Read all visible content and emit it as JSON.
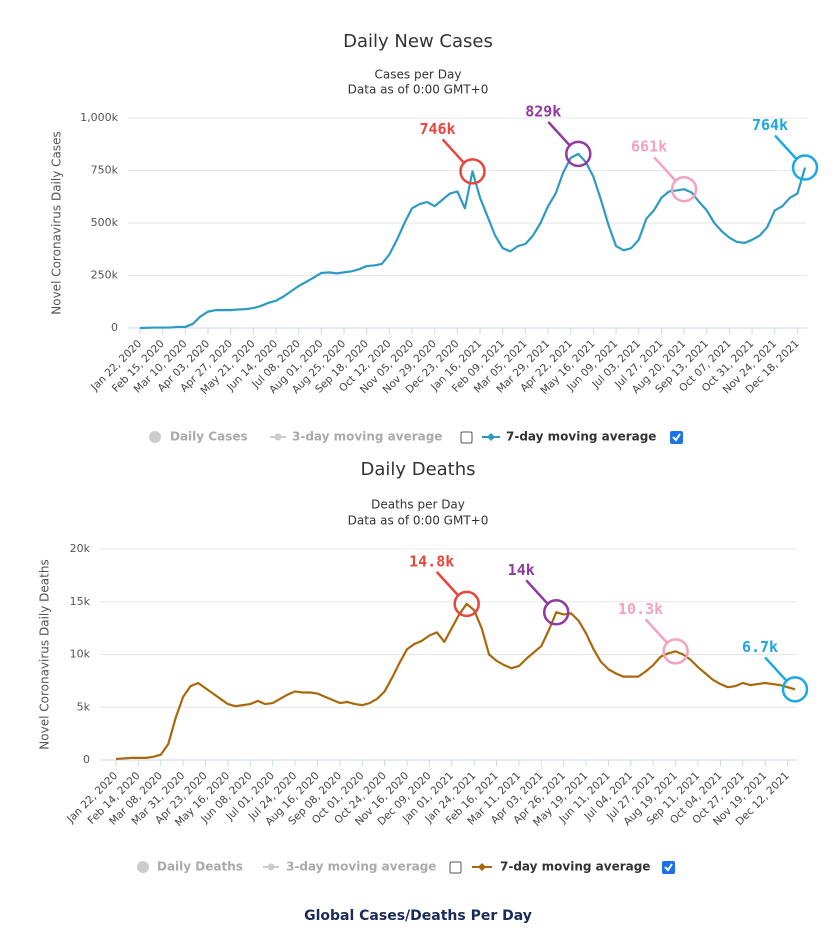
{
  "chart_data": [
    {
      "type": "line",
      "title": "Daily New Cases",
      "subtitle": [
        "Cases per Day",
        "Data as of 0:00 GMT+0"
      ],
      "y_label": "Novel Coronavirus Daily Cases",
      "categories": [
        "Jan 22, 2020",
        null,
        null,
        "Feb 15, 2020",
        null,
        null,
        "Mar 10, 2020",
        null,
        null,
        "Apr 03, 2020",
        null,
        null,
        "Apr 27, 2020",
        null,
        null,
        "May 21, 2020",
        null,
        null,
        "Jun 14, 2020",
        null,
        null,
        "Jul 08, 2020",
        null,
        null,
        "Aug 01, 2020",
        null,
        null,
        "Aug 25, 2020",
        null,
        null,
        "Sep 18, 2020",
        null,
        null,
        "Oct 12, 2020",
        null,
        null,
        "Nov 05, 2020",
        null,
        null,
        "Nov 29, 2020",
        null,
        null,
        "Dec 23, 2020",
        null,
        null,
        "Jan 16, 2021",
        null,
        null,
        "Feb 09, 2021",
        null,
        null,
        "Mar 05, 2021",
        null,
        null,
        "Mar 29, 2021",
        null,
        null,
        "Apr 22, 2021",
        null,
        null,
        "May 16, 2021",
        null,
        null,
        "Jun 09, 2021",
        null,
        null,
        "Jul 03, 2021",
        null,
        null,
        "Jul 27, 2021",
        null,
        null,
        "Aug 20, 2021",
        null,
        null,
        "Sep 13, 2021",
        null,
        null,
        "Oct 07, 2021",
        null,
        null,
        "Oct 31, 2021",
        null,
        null,
        "Nov 24, 2021",
        null,
        null,
        "Dec 18, 2021",
        null
      ],
      "series": [
        {
          "name": "7-day moving average",
          "color": "#2e9ac3",
          "values": [
            0,
            1000,
            2000,
            2000,
            2000,
            5000,
            5000,
            20000,
            55000,
            78000,
            85000,
            85000,
            85000,
            88000,
            90000,
            95000,
            105000,
            120000,
            130000,
            150000,
            175000,
            200000,
            220000,
            240000,
            262000,
            265000,
            260000,
            265000,
            270000,
            280000,
            295000,
            298000,
            305000,
            350000,
            420000,
            500000,
            570000,
            590000,
            600000,
            580000,
            610000,
            640000,
            650000,
            570000,
            746000,
            620000,
            530000,
            440000,
            380000,
            365000,
            390000,
            400000,
            440000,
            500000,
            580000,
            640000,
            740000,
            810000,
            829000,
            790000,
            720000,
            610000,
            490000,
            390000,
            370000,
            380000,
            420000,
            520000,
            560000,
            620000,
            650000,
            655000,
            661000,
            645000,
            600000,
            560000,
            500000,
            460000,
            430000,
            410000,
            405000,
            420000,
            440000,
            480000,
            560000,
            580000,
            620000,
            640000,
            764000
          ]
        }
      ],
      "inactive_legend": [
        "Daily Cases",
        "3-day moving average"
      ],
      "ylim": [
        0,
        1000000
      ],
      "yticks": [
        0,
        {
          "value": 250000,
          "label": "250k"
        },
        {
          "value": 500000,
          "label": "500k"
        },
        {
          "value": 750000,
          "label": "750k"
        },
        {
          "value": 1000000,
          "label": "1,000k"
        }
      ],
      "grid": true,
      "annotations": [
        {
          "text": "746k",
          "value": 746000,
          "color": "#e8453c"
        },
        {
          "text": "829k",
          "value": 829000,
          "color": "#8e3a9f"
        },
        {
          "text": "661k",
          "value": 661000,
          "color": "#f2a2bd"
        },
        {
          "text": "764k",
          "value": 764000,
          "color": "#1ba9e1"
        }
      ]
    },
    {
      "type": "line",
      "title": "Daily Deaths",
      "subtitle": [
        "Deaths per Day",
        "Data as of 0:00 GMT+0"
      ],
      "y_label": "Novel Coronavirus Daily Deaths",
      "categories": [
        "Jan 22, 2020",
        null,
        null,
        "Feb 14, 2020",
        null,
        null,
        "Mar 08, 2020",
        null,
        null,
        "Mar 31, 2020",
        null,
        null,
        "Apr 23, 2020",
        null,
        null,
        "May 16, 2020",
        null,
        null,
        "Jun 08, 2020",
        null,
        null,
        "Jul 01, 2020",
        null,
        null,
        "Jul 24, 2020",
        null,
        null,
        "Aug 16, 2020",
        null,
        null,
        "Sep 08, 2020",
        null,
        null,
        "Oct 01, 2020",
        null,
        null,
        "Oct 24, 2020",
        null,
        null,
        "Nov 16, 2020",
        null,
        null,
        "Dec 09, 2020",
        null,
        null,
        "Jan 01, 2021",
        null,
        null,
        "Jan 24, 2021",
        null,
        null,
        "Feb 16, 2021",
        null,
        null,
        "Mar 11, 2021",
        null,
        null,
        "Apr 03, 2021",
        null,
        null,
        "Apr 26, 2021",
        null,
        null,
        "May 19, 2021",
        null,
        null,
        "Jun 11, 2021",
        null,
        null,
        "Jul 04, 2021",
        null,
        null,
        "Jul 27, 2021",
        null,
        null,
        "Aug 19, 2021",
        null,
        null,
        "Sep 11, 2021",
        null,
        null,
        "Oct 04, 2021",
        null,
        null,
        "Oct 27, 2021",
        null,
        null,
        "Nov 19, 2021",
        null,
        null,
        "Dec 12, 2021",
        null
      ],
      "series": [
        {
          "name": "7-day moving average",
          "color": "#a8680c",
          "values": [
            100,
            150,
            200,
            200,
            200,
            300,
            500,
            1500,
            4000,
            6000,
            7000,
            7300,
            6800,
            6300,
            5800,
            5300,
            5100,
            5200,
            5300,
            5600,
            5300,
            5400,
            5800,
            6200,
            6500,
            6400,
            6400,
            6300,
            6000,
            5700,
            5400,
            5500,
            5300,
            5200,
            5400,
            5800,
            6500,
            7800,
            9200,
            10500,
            11000,
            11300,
            11800,
            12100,
            11200,
            12500,
            13800,
            14800,
            14200,
            12500,
            10000,
            9400,
            9000,
            8700,
            8900,
            9600,
            10200,
            10800,
            12300,
            14000,
            13800,
            13900,
            13200,
            12000,
            10500,
            9300,
            8600,
            8200,
            7900,
            7900,
            7900,
            8400,
            9000,
            9800,
            10100,
            10300,
            10000,
            9500,
            8800,
            8200,
            7600,
            7200,
            6900,
            7000,
            7300,
            7100,
            7200,
            7300,
            7200,
            7100,
            6900,
            6700
          ]
        }
      ],
      "inactive_legend": [
        "Daily Deaths",
        "3-day moving average"
      ],
      "ylim": [
        0,
        20000
      ],
      "yticks": [
        0,
        {
          "value": 5000,
          "label": "5k"
        },
        {
          "value": 10000,
          "label": "10k"
        },
        {
          "value": 15000,
          "label": "15k"
        },
        {
          "value": 20000,
          "label": "20k"
        }
      ],
      "grid": true,
      "annotations": [
        {
          "text": "14.8k",
          "value": 14800,
          "color": "#e8453c"
        },
        {
          "text": "14k",
          "value": 14000,
          "color": "#8e3a9f"
        },
        {
          "text": "10.3k",
          "value": 10300,
          "color": "#f2a2bd"
        },
        {
          "text": "6.7k",
          "value": 6700,
          "color": "#1ba9e1"
        }
      ]
    }
  ],
  "caption": "Global Cases/Deaths Per Day"
}
